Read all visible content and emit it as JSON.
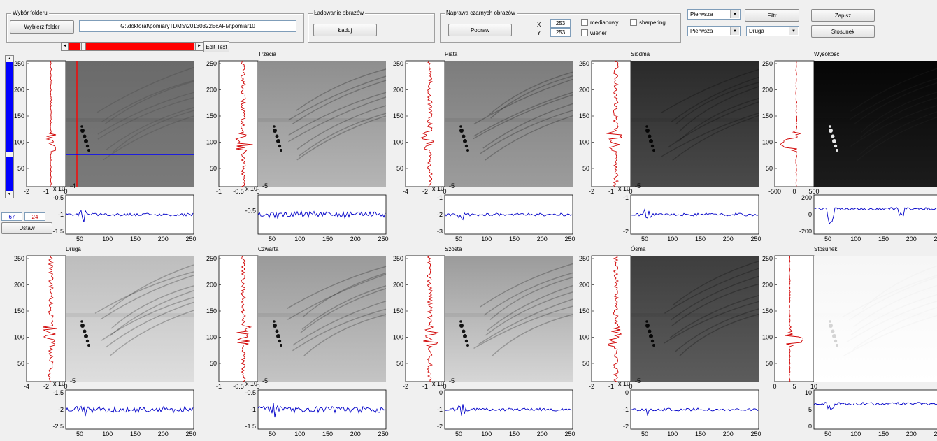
{
  "folder_group": {
    "title": "Wybór folderu",
    "button": "Wybierz folder",
    "path": "G:\\doktorat\\pomiaryTDMS\\20130322EcAFM\\pomiar10"
  },
  "load_group": {
    "title": "Ładowanie obrazów",
    "button": "Ładuj"
  },
  "repair_group": {
    "title": "Naprawa czarnych obrazów",
    "button": "Popraw",
    "x_label": "X",
    "x_value": "253",
    "y_label": "Y",
    "y_value": "253",
    "check_median": "medianowy",
    "check_wiener": "wiener",
    "check_sharpering": "sharpering"
  },
  "right_controls": {
    "select1": "Pierwsza",
    "select2": "Pierwsza",
    "select3": "Druga",
    "filter_button": "Filtr",
    "save_button": "Zapisz",
    "ratio_button": "Stosunek"
  },
  "slider": {
    "edit_text": "Edit Text"
  },
  "coords": {
    "x": "67",
    "y": "24",
    "set_button": "Ustaw"
  },
  "tick_labels": {
    "img_y": [
      "250",
      "200",
      "150",
      "100",
      "50"
    ],
    "img_x": [
      "50",
      "100",
      "150",
      "200",
      "250"
    ],
    "scale_1e4": "x 10",
    "exp_m4": "-4",
    "exp_m5": "-5",
    "exp_10": "10"
  },
  "panels": [
    {
      "title": "",
      "side_x": [
        "-2",
        "-1",
        "0"
      ],
      "bot_y": [
        "-0.5",
        "-1",
        "-1.5"
      ],
      "bot_exp": "-4",
      "side_exp": "-4"
    },
    {
      "title": "Trzecia",
      "side_x": [
        "-1",
        "-0.5",
        "0"
      ],
      "bot_y": [
        "-0.5"
      ],
      "bot_exp": "-5",
      "side_exp": "-5"
    },
    {
      "title": "Piąta",
      "side_x": [
        "-4",
        "-2",
        "0"
      ],
      "bot_y": [
        "-1",
        "-2",
        "-3"
      ],
      "bot_exp": "-5",
      "side_exp": "-5"
    },
    {
      "title": "Siódma",
      "side_x": [
        "-2",
        "-1",
        "0"
      ],
      "bot_y": [
        "-1",
        "-2"
      ],
      "bot_exp": "-5",
      "side_exp": "-5"
    },
    {
      "title": "Wysokość",
      "side_x": [
        "-500",
        "0",
        "500"
      ],
      "bot_y": [
        "200",
        "0",
        "-200"
      ],
      "bot_exp": "",
      "side_exp": ""
    },
    {
      "title": "Druga",
      "side_x": [
        "-4",
        "-2",
        "0"
      ],
      "bot_y": [
        "-1.5",
        "-2",
        "-2.5"
      ],
      "bot_exp": "-5",
      "side_exp": "-5"
    },
    {
      "title": "Czwarta",
      "side_x": [
        "-1",
        "-0.5",
        "0"
      ],
      "bot_y": [
        "-0.5",
        "-1",
        "-1.5"
      ],
      "bot_exp": "-5",
      "side_exp": "-5"
    },
    {
      "title": "Szósta",
      "side_x": [
        "-2",
        "-1",
        "0"
      ],
      "bot_y": [
        "0",
        "-1",
        "-2"
      ],
      "bot_exp": "-5",
      "side_exp": "-5"
    },
    {
      "title": "Ósma",
      "side_x": [
        "-2",
        "-1",
        "0"
      ],
      "bot_y": [
        "0",
        "-1",
        "-2"
      ],
      "bot_exp": "-5",
      "side_exp": "-5"
    },
    {
      "title": "Stosunek",
      "side_x": [
        "0",
        "5",
        "10"
      ],
      "bot_y": [
        "10",
        "5",
        "0"
      ],
      "bot_exp": "",
      "side_exp": ""
    }
  ]
}
